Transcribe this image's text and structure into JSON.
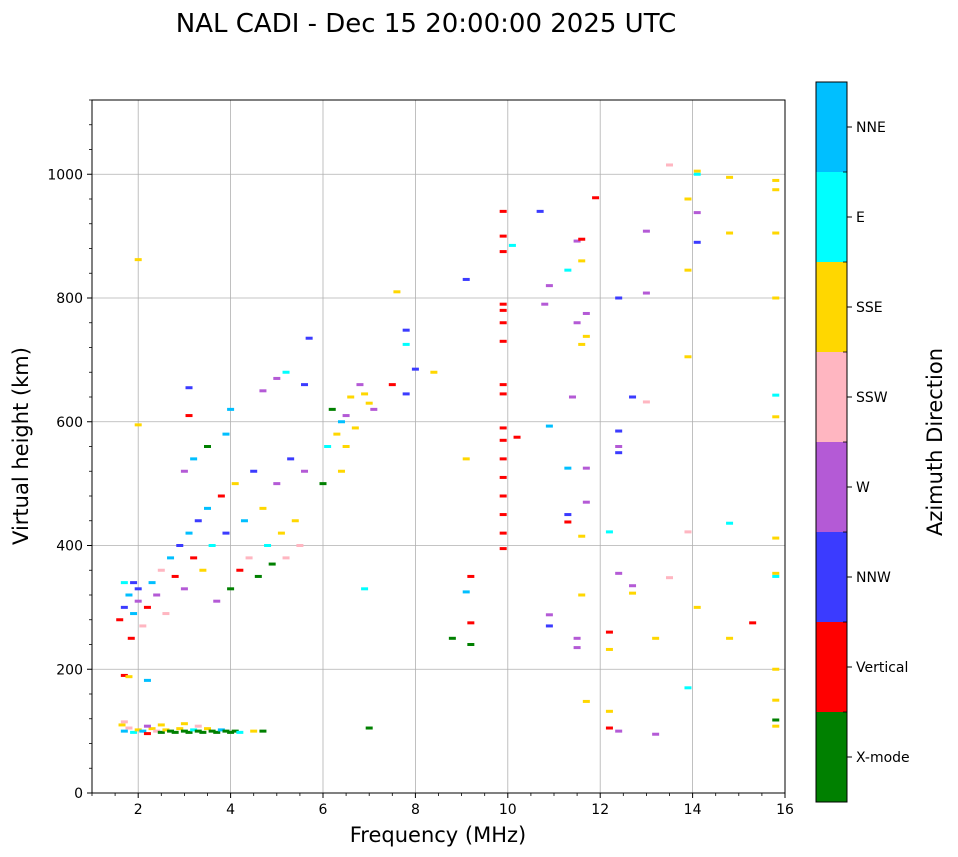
{
  "chart_data": {
    "type": "scatter",
    "title": "NAL CADI - Dec 15 20:00:00 2025 UTC",
    "xlabel": "Frequency (MHz)",
    "ylabel": "Virtual height (km)",
    "xlim": [
      1.0,
      16.0
    ],
    "ylim": [
      0,
      1120
    ],
    "xticks": [
      2,
      4,
      6,
      8,
      10,
      12,
      14,
      16
    ],
    "yticks": [
      0,
      200,
      400,
      600,
      800,
      1000
    ],
    "grid": true,
    "colorbar": {
      "label": "Azimuth Direction",
      "categories": [
        {
          "name": "X-mode",
          "color": "#008000"
        },
        {
          "name": "Vertical",
          "color": "#ff0000"
        },
        {
          "name": "NNW",
          "color": "#3b3bff"
        },
        {
          "name": "W",
          "color": "#b45ad6"
        },
        {
          "name": "SSW",
          "color": "#ffb6c1"
        },
        {
          "name": "SSE",
          "color": "#ffd700"
        },
        {
          "name": "E",
          "color": "#00ffff"
        },
        {
          "name": "NNE",
          "color": "#00bfff"
        }
      ]
    },
    "points": [
      [
        1.65,
        110,
        "SSE"
      ],
      [
        1.7,
        100,
        "NNE"
      ],
      [
        1.8,
        105,
        "SSW"
      ],
      [
        1.9,
        98,
        "E"
      ],
      [
        2.0,
        102,
        "SSE"
      ],
      [
        2.1,
        100,
        "NNE"
      ],
      [
        2.2,
        96,
        "Vertical"
      ],
      [
        2.3,
        104,
        "SSE"
      ],
      [
        2.4,
        100,
        "SSW"
      ],
      [
        2.5,
        98,
        "X-mode"
      ],
      [
        2.6,
        102,
        "SSE"
      ],
      [
        2.7,
        100,
        "X-mode"
      ],
      [
        2.8,
        98,
        "X-mode"
      ],
      [
        2.9,
        104,
        "SSE"
      ],
      [
        3.0,
        100,
        "X-mode"
      ],
      [
        3.1,
        98,
        "X-mode"
      ],
      [
        3.2,
        102,
        "E"
      ],
      [
        3.3,
        100,
        "X-mode"
      ],
      [
        3.4,
        98,
        "X-mode"
      ],
      [
        3.5,
        104,
        "SSE"
      ],
      [
        3.6,
        100,
        "X-mode"
      ],
      [
        3.7,
        98,
        "X-mode"
      ],
      [
        3.8,
        102,
        "NNE"
      ],
      [
        3.9,
        100,
        "X-mode"
      ],
      [
        4.0,
        98,
        "X-mode"
      ],
      [
        4.1,
        100,
        "X-mode"
      ],
      [
        4.2,
        98,
        "E"
      ],
      [
        4.5,
        100,
        "SSE"
      ],
      [
        4.7,
        100,
        "X-mode"
      ],
      [
        2.5,
        110,
        "SSE"
      ],
      [
        3.0,
        112,
        "SSE"
      ],
      [
        3.3,
        108,
        "SSW"
      ],
      [
        2.2,
        108,
        "W"
      ],
      [
        1.7,
        115,
        "SSW"
      ],
      [
        1.7,
        190,
        "Vertical"
      ],
      [
        1.8,
        188,
        "SSE"
      ],
      [
        2.2,
        182,
        "NNE"
      ],
      [
        1.6,
        280,
        "Vertical"
      ],
      [
        1.7,
        300,
        "NNW"
      ],
      [
        1.8,
        320,
        "NNE"
      ],
      [
        1.9,
        340,
        "NNW"
      ],
      [
        2.0,
        310,
        "W"
      ],
      [
        1.7,
        340,
        "E"
      ],
      [
        1.9,
        290,
        "NNE"
      ],
      [
        2.0,
        330,
        "NNW"
      ],
      [
        1.85,
        250,
        "Vertical"
      ],
      [
        2.1,
        270,
        "SSW"
      ],
      [
        2.2,
        300,
        "Vertical"
      ],
      [
        2.3,
        340,
        "NNE"
      ],
      [
        2.4,
        320,
        "W"
      ],
      [
        2.5,
        360,
        "SSW"
      ],
      [
        2.6,
        290,
        "SSW"
      ],
      [
        2.7,
        380,
        "NNE"
      ],
      [
        2.8,
        350,
        "Vertical"
      ],
      [
        2.9,
        400,
        "NNW"
      ],
      [
        3.0,
        330,
        "W"
      ],
      [
        3.1,
        420,
        "NNE"
      ],
      [
        3.2,
        380,
        "Vertical"
      ],
      [
        3.3,
        440,
        "NNW"
      ],
      [
        3.4,
        360,
        "SSE"
      ],
      [
        3.5,
        460,
        "NNE"
      ],
      [
        3.6,
        400,
        "E"
      ],
      [
        3.7,
        310,
        "W"
      ],
      [
        3.8,
        480,
        "Vertical"
      ],
      [
        3.9,
        420,
        "NNW"
      ],
      [
        4.0,
        330,
        "X-mode"
      ],
      [
        4.1,
        500,
        "SSE"
      ],
      [
        4.2,
        360,
        "Vertical"
      ],
      [
        4.3,
        440,
        "NNE"
      ],
      [
        4.4,
        380,
        "SSW"
      ],
      [
        4.5,
        520,
        "NNW"
      ],
      [
        4.6,
        350,
        "X-mode"
      ],
      [
        4.7,
        460,
        "SSE"
      ],
      [
        4.8,
        400,
        "E"
      ],
      [
        4.9,
        370,
        "X-mode"
      ],
      [
        5.0,
        500,
        "W"
      ],
      [
        5.1,
        420,
        "SSE"
      ],
      [
        5.2,
        380,
        "SSW"
      ],
      [
        5.3,
        540,
        "NNW"
      ],
      [
        5.4,
        440,
        "SSE"
      ],
      [
        5.5,
        400,
        "SSW"
      ],
      [
        5.6,
        520,
        "W"
      ],
      [
        3.0,
        520,
        "W"
      ],
      [
        3.2,
        540,
        "NNE"
      ],
      [
        3.5,
        560,
        "X-mode"
      ],
      [
        3.9,
        580,
        "NNE"
      ],
      [
        4.0,
        620,
        "NNE"
      ],
      [
        3.1,
        610,
        "Vertical"
      ],
      [
        3.1,
        655,
        "NNW"
      ],
      [
        2.0,
        595,
        "SSE"
      ],
      [
        2.0,
        862,
        "SSE"
      ],
      [
        4.7,
        650,
        "W"
      ],
      [
        5.0,
        670,
        "W"
      ],
      [
        5.2,
        680,
        "E"
      ],
      [
        5.6,
        660,
        "NNW"
      ],
      [
        5.7,
        735,
        "NNW"
      ],
      [
        6.1,
        560,
        "E"
      ],
      [
        6.0,
        500,
        "X-mode"
      ],
      [
        6.2,
        620,
        "X-mode"
      ],
      [
        6.3,
        580,
        "SSE"
      ],
      [
        6.4,
        600,
        "NNE"
      ],
      [
        6.5,
        610,
        "W"
      ],
      [
        6.6,
        640,
        "SSE"
      ],
      [
        6.5,
        560,
        "SSE"
      ],
      [
        6.4,
        520,
        "SSE"
      ],
      [
        6.7,
        590,
        "SSE"
      ],
      [
        6.8,
        660,
        "W"
      ],
      [
        6.9,
        645,
        "SSE"
      ],
      [
        7.0,
        630,
        "SSE"
      ],
      [
        7.1,
        620,
        "W"
      ],
      [
        7.5,
        660,
        "Vertical"
      ],
      [
        7.8,
        645,
        "NNW"
      ],
      [
        7.6,
        810,
        "SSE"
      ],
      [
        7.8,
        748,
        "NNW"
      ],
      [
        7.8,
        725,
        "E"
      ],
      [
        8.0,
        685,
        "NNW"
      ],
      [
        8.4,
        680,
        "SSE"
      ],
      [
        6.9,
        330,
        "E"
      ],
      [
        7.0,
        105,
        "X-mode"
      ],
      [
        8.8,
        250,
        "X-mode"
      ],
      [
        9.1,
        540,
        "SSE"
      ],
      [
        9.1,
        830,
        "NNW"
      ],
      [
        9.1,
        325,
        "NNE"
      ],
      [
        9.2,
        350,
        "Vertical"
      ],
      [
        9.2,
        275,
        "Vertical"
      ],
      [
        9.2,
        240,
        "X-mode"
      ],
      [
        9.9,
        395,
        "Vertical"
      ],
      [
        9.9,
        420,
        "Vertical"
      ],
      [
        9.9,
        450,
        "Vertical"
      ],
      [
        9.9,
        480,
        "Vertical"
      ],
      [
        9.9,
        510,
        "Vertical"
      ],
      [
        9.9,
        540,
        "Vertical"
      ],
      [
        9.9,
        570,
        "Vertical"
      ],
      [
        9.9,
        590,
        "Vertical"
      ],
      [
        9.9,
        645,
        "Vertical"
      ],
      [
        9.9,
        660,
        "Vertical"
      ],
      [
        9.9,
        730,
        "Vertical"
      ],
      [
        9.9,
        760,
        "Vertical"
      ],
      [
        9.9,
        780,
        "Vertical"
      ],
      [
        9.9,
        790,
        "Vertical"
      ],
      [
        9.9,
        875,
        "Vertical"
      ],
      [
        9.9,
        900,
        "Vertical"
      ],
      [
        9.9,
        940,
        "Vertical"
      ],
      [
        10.2,
        575,
        "Vertical"
      ],
      [
        10.1,
        885,
        "E"
      ],
      [
        10.7,
        940,
        "NNW"
      ],
      [
        10.8,
        790,
        "W"
      ],
      [
        10.9,
        820,
        "W"
      ],
      [
        10.9,
        593,
        "NNE"
      ],
      [
        10.9,
        288,
        "W"
      ],
      [
        10.9,
        270,
        "NNW"
      ],
      [
        11.3,
        525,
        "NNE"
      ],
      [
        11.3,
        450,
        "NNW"
      ],
      [
        11.3,
        438,
        "Vertical"
      ],
      [
        11.3,
        845,
        "E"
      ],
      [
        11.4,
        640,
        "W"
      ],
      [
        11.5,
        760,
        "W"
      ],
      [
        11.5,
        892,
        "W"
      ],
      [
        11.5,
        250,
        "W"
      ],
      [
        11.5,
        235,
        "W"
      ],
      [
        11.6,
        895,
        "Vertical"
      ],
      [
        11.6,
        860,
        "SSE"
      ],
      [
        11.6,
        725,
        "SSE"
      ],
      [
        11.6,
        415,
        "SSE"
      ],
      [
        11.6,
        320,
        "SSE"
      ],
      [
        11.7,
        775,
        "W"
      ],
      [
        11.7,
        738,
        "SSE"
      ],
      [
        11.7,
        525,
        "W"
      ],
      [
        11.7,
        470,
        "W"
      ],
      [
        11.7,
        148,
        "SSE"
      ],
      [
        11.9,
        962,
        "Vertical"
      ],
      [
        12.2,
        422,
        "E"
      ],
      [
        12.2,
        260,
        "Vertical"
      ],
      [
        12.2,
        232,
        "SSE"
      ],
      [
        12.2,
        132,
        "SSE"
      ],
      [
        12.2,
        105,
        "Vertical"
      ],
      [
        12.4,
        800,
        "NNW"
      ],
      [
        12.4,
        585,
        "NNW"
      ],
      [
        12.4,
        560,
        "W"
      ],
      [
        12.4,
        550,
        "NNW"
      ],
      [
        12.4,
        355,
        "W"
      ],
      [
        12.4,
        100,
        "W"
      ],
      [
        12.7,
        640,
        "NNW"
      ],
      [
        12.7,
        335,
        "W"
      ],
      [
        12.7,
        323,
        "SSE"
      ],
      [
        13.0,
        908,
        "W"
      ],
      [
        13.0,
        808,
        "W"
      ],
      [
        13.0,
        632,
        "SSW"
      ],
      [
        13.2,
        250,
        "SSE"
      ],
      [
        13.2,
        95,
        "W"
      ],
      [
        13.5,
        1015,
        "SSW"
      ],
      [
        13.5,
        348,
        "SSW"
      ],
      [
        13.9,
        960,
        "SSE"
      ],
      [
        13.9,
        845,
        "SSE"
      ],
      [
        13.9,
        705,
        "SSE"
      ],
      [
        13.9,
        422,
        "SSW"
      ],
      [
        13.9,
        170,
        "E"
      ],
      [
        14.1,
        1005,
        "SSE"
      ],
      [
        14.1,
        1000,
        "E"
      ],
      [
        14.1,
        938,
        "W"
      ],
      [
        14.1,
        890,
        "NNW"
      ],
      [
        14.1,
        300,
        "SSE"
      ],
      [
        14.8,
        995,
        "SSE"
      ],
      [
        14.8,
        905,
        "SSE"
      ],
      [
        14.8,
        436,
        "E"
      ],
      [
        14.8,
        250,
        "SSE"
      ],
      [
        15.3,
        275,
        "Vertical"
      ],
      [
        15.8,
        990,
        "SSE"
      ],
      [
        15.8,
        975,
        "SSE"
      ],
      [
        15.8,
        905,
        "SSE"
      ],
      [
        15.8,
        800,
        "SSE"
      ],
      [
        15.8,
        643,
        "E"
      ],
      [
        15.8,
        608,
        "SSE"
      ],
      [
        15.8,
        412,
        "SSE"
      ],
      [
        15.8,
        355,
        "SSE"
      ],
      [
        15.8,
        350,
        "E"
      ],
      [
        15.8,
        200,
        "SSE"
      ],
      [
        15.8,
        150,
        "SSE"
      ],
      [
        15.8,
        118,
        "X-mode"
      ],
      [
        15.8,
        108,
        "SSE"
      ]
    ]
  }
}
